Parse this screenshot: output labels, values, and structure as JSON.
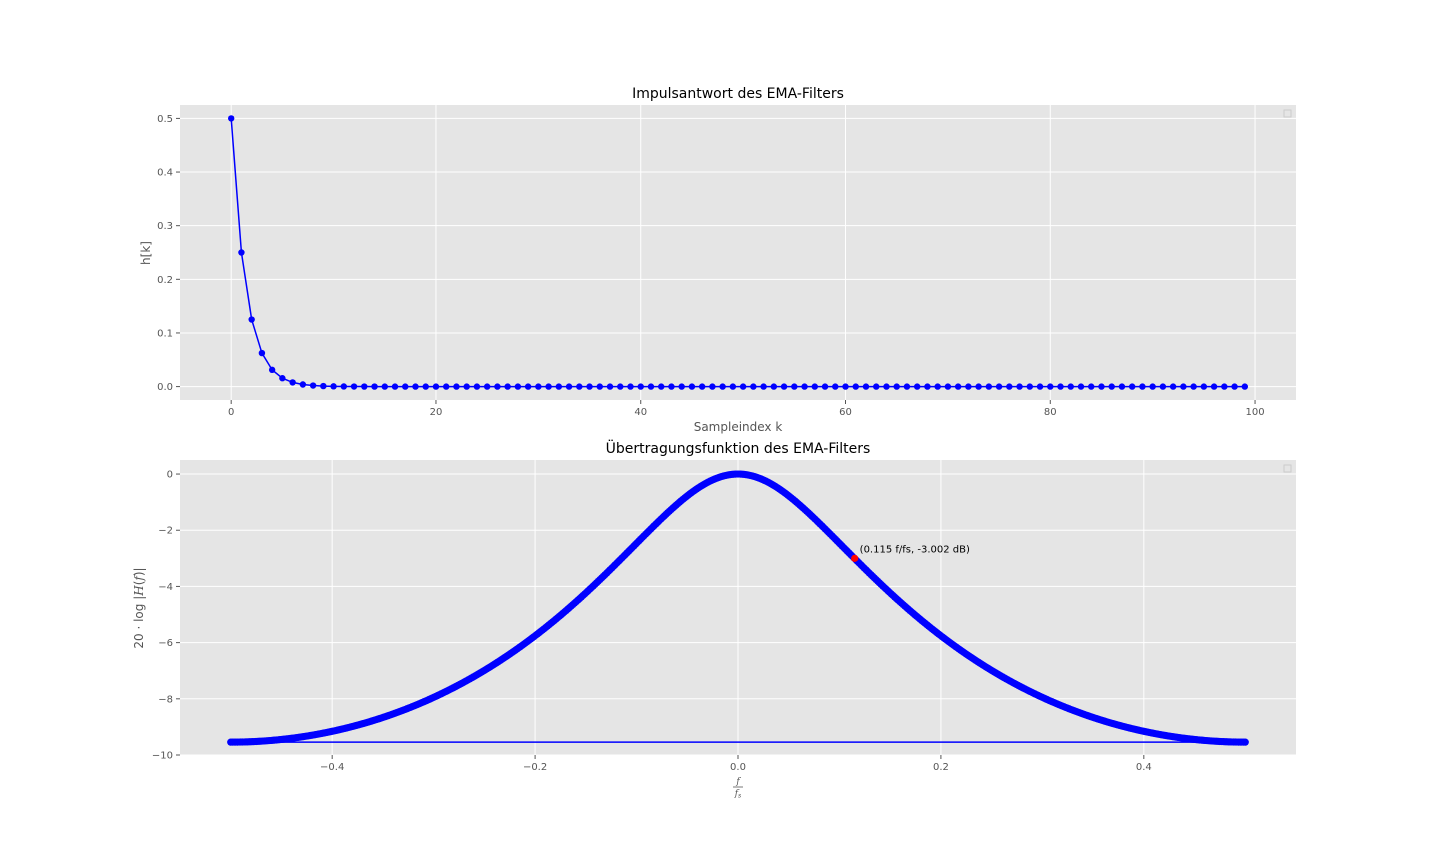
{
  "chart_data": [
    {
      "type": "line",
      "title": "Impulsantwort des EMA-Filters",
      "xlabel": "Sampleindex k",
      "ylabel": "h[k]",
      "xlim": [
        -5,
        104
      ],
      "ylim": [
        -0.025,
        0.525
      ],
      "xticks": [
        0,
        20,
        40,
        60,
        80,
        100
      ],
      "yticks": [
        0.0,
        0.1,
        0.2,
        0.3,
        0.4,
        0.5
      ],
      "xtick_labels": [
        "0",
        "20",
        "40",
        "60",
        "80",
        "100"
      ],
      "ytick_labels": [
        "0.0",
        "0.1",
        "0.2",
        "0.3",
        "0.4",
        "0.5"
      ],
      "grid": true,
      "legend": "upper-right",
      "series": [
        {
          "formula": "h[k] = 0.5 * 0.5^k",
          "x_start": 0,
          "x_end": 99,
          "x_step": 1,
          "values_first": [
            0.5,
            0.25,
            0.125,
            0.0625,
            0.03125,
            0.015625,
            0.0078125,
            0.00390625,
            0.001953125,
            0.0009765625
          ],
          "color": "#0000ff",
          "marker": "circle"
        }
      ]
    },
    {
      "type": "line",
      "title": "Übertragungsfunktion des EMA-Filters",
      "xlabel_html": "f / f_s",
      "ylabel": "20 · log |H(f)|",
      "xlim": [
        -0.55,
        0.55
      ],
      "ylim": [
        -10,
        0.5
      ],
      "xticks": [
        -0.4,
        -0.2,
        0.0,
        0.2,
        0.4
      ],
      "yticks": [
        0,
        -2,
        -4,
        -6,
        -8,
        -10
      ],
      "xtick_labels": [
        "−0.4",
        "−0.2",
        "0.0",
        "0.2",
        "0.4"
      ],
      "ytick_labels": [
        "0",
        "−2",
        "−4",
        "−6",
        "−8",
        "−10"
      ],
      "grid": true,
      "legend": "upper-right",
      "series": [
        {
          "formula": "20*log10(|0.5 / (1 - 0.5*exp(-j*2*pi*f))|)",
          "x_start": -0.5,
          "x_end": 0.5,
          "points": 600,
          "wrap_value_db": -9.542,
          "color": "#0000ff",
          "marker": "circle"
        }
      ],
      "annotation": {
        "x": 0.115,
        "y": -3.002,
        "text": "(0.115 f/fs, -3.002 dB)",
        "color": "#ff0000"
      }
    }
  ]
}
